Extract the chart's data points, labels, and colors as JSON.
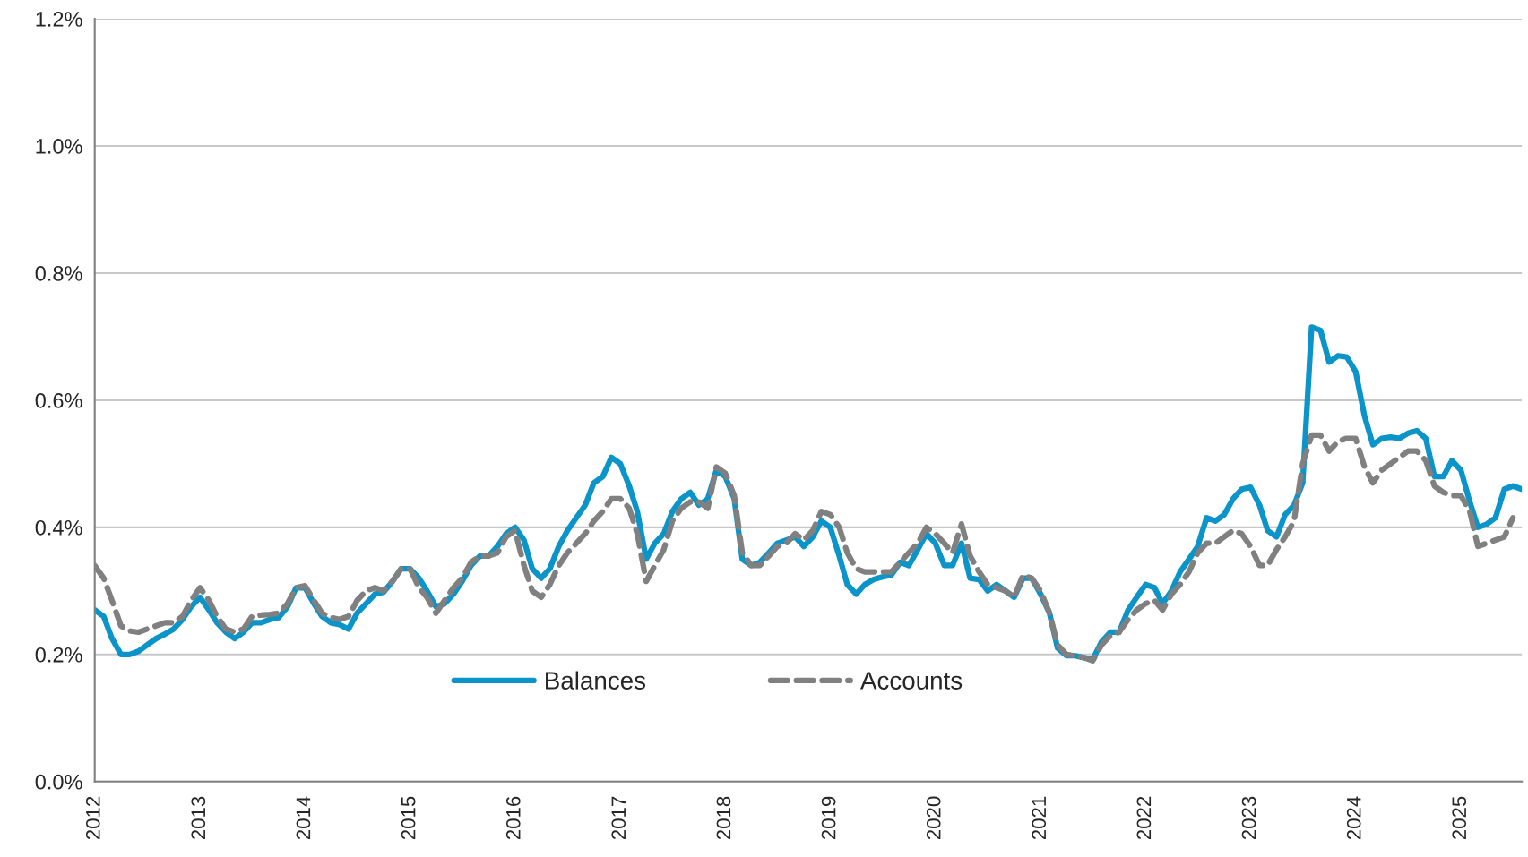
{
  "chart_data": {
    "type": "line",
    "x": [
      "2012-01",
      "2012-02",
      "2012-03",
      "2012-04",
      "2012-05",
      "2012-06",
      "2012-07",
      "2012-08",
      "2012-09",
      "2012-10",
      "2012-11",
      "2012-12",
      "2013-01",
      "2013-02",
      "2013-03",
      "2013-04",
      "2013-05",
      "2013-06",
      "2013-07",
      "2013-08",
      "2013-09",
      "2013-10",
      "2013-11",
      "2013-12",
      "2014-01",
      "2014-02",
      "2014-03",
      "2014-04",
      "2014-05",
      "2014-06",
      "2014-07",
      "2014-08",
      "2014-09",
      "2014-10",
      "2014-11",
      "2014-12",
      "2015-01",
      "2015-02",
      "2015-03",
      "2015-04",
      "2015-05",
      "2015-06",
      "2015-07",
      "2015-08",
      "2015-09",
      "2015-10",
      "2015-11",
      "2015-12",
      "2016-01",
      "2016-02",
      "2016-03",
      "2016-04",
      "2016-05",
      "2016-06",
      "2016-07",
      "2016-08",
      "2016-09",
      "2016-10",
      "2016-11",
      "2016-12",
      "2017-01",
      "2017-02",
      "2017-03",
      "2017-04",
      "2017-05",
      "2017-06",
      "2017-07",
      "2017-08",
      "2017-09",
      "2017-10",
      "2017-11",
      "2017-12",
      "2018-01",
      "2018-02",
      "2018-03",
      "2018-04",
      "2018-05",
      "2018-06",
      "2018-07",
      "2018-08",
      "2018-09",
      "2018-10",
      "2018-11",
      "2018-12",
      "2019-01",
      "2019-02",
      "2019-03",
      "2019-04",
      "2019-05",
      "2019-06",
      "2019-07",
      "2019-08",
      "2019-09",
      "2019-10",
      "2019-11",
      "2019-12",
      "2020-01",
      "2020-02",
      "2020-03",
      "2020-04",
      "2020-05",
      "2020-06",
      "2020-07",
      "2020-08",
      "2020-09",
      "2020-10",
      "2020-11",
      "2020-12",
      "2021-01",
      "2021-02",
      "2021-03",
      "2021-04",
      "2021-05",
      "2021-06",
      "2021-07",
      "2021-08",
      "2021-09",
      "2021-10",
      "2021-11",
      "2021-12",
      "2022-01",
      "2022-02",
      "2022-03",
      "2022-04",
      "2022-05",
      "2022-06",
      "2022-07",
      "2022-08",
      "2022-09",
      "2022-10",
      "2022-11",
      "2022-12",
      "2023-01",
      "2023-02",
      "2023-03",
      "2023-04",
      "2023-05",
      "2023-06",
      "2023-07",
      "2023-08",
      "2023-09",
      "2023-10",
      "2023-11",
      "2023-12",
      "2024-01",
      "2024-02",
      "2024-03",
      "2024-04",
      "2024-05",
      "2024-06",
      "2024-07",
      "2024-08",
      "2024-09",
      "2024-10",
      "2024-11",
      "2024-12",
      "2025-01",
      "2025-02",
      "2025-03",
      "2025-04",
      "2025-05",
      "2025-06",
      "2025-07",
      "2025-08"
    ],
    "series": [
      {
        "name": "Balances",
        "color": "#0a94c9",
        "line_style": "solid",
        "values": [
          0.27,
          0.26,
          0.225,
          0.2,
          0.2,
          0.205,
          0.215,
          0.225,
          0.232,
          0.24,
          0.255,
          0.275,
          0.29,
          0.27,
          0.25,
          0.235,
          0.225,
          0.235,
          0.25,
          0.25,
          0.255,
          0.258,
          0.275,
          0.305,
          0.305,
          0.28,
          0.26,
          0.25,
          0.247,
          0.24,
          0.265,
          0.28,
          0.295,
          0.298,
          0.315,
          0.335,
          0.335,
          0.32,
          0.3,
          0.275,
          0.28,
          0.295,
          0.315,
          0.34,
          0.355,
          0.355,
          0.37,
          0.39,
          0.4,
          0.38,
          0.335,
          0.32,
          0.335,
          0.37,
          0.395,
          0.415,
          0.435,
          0.47,
          0.48,
          0.51,
          0.5,
          0.465,
          0.425,
          0.35,
          0.375,
          0.39,
          0.425,
          0.445,
          0.455,
          0.435,
          0.445,
          0.49,
          0.48,
          0.445,
          0.35,
          0.34,
          0.345,
          0.36,
          0.375,
          0.38,
          0.385,
          0.37,
          0.385,
          0.41,
          0.4,
          0.355,
          0.31,
          0.295,
          0.31,
          0.318,
          0.322,
          0.325,
          0.345,
          0.34,
          0.365,
          0.39,
          0.375,
          0.34,
          0.34,
          0.375,
          0.32,
          0.318,
          0.3,
          0.31,
          0.3,
          0.29,
          0.32,
          0.32,
          0.295,
          0.265,
          0.21,
          0.198,
          0.198,
          0.195,
          0.192,
          0.22,
          0.235,
          0.235,
          0.27,
          0.29,
          0.31,
          0.305,
          0.28,
          0.3,
          0.33,
          0.35,
          0.37,
          0.415,
          0.41,
          0.42,
          0.445,
          0.46,
          0.463,
          0.435,
          0.395,
          0.385,
          0.42,
          0.435,
          0.47,
          0.715,
          0.71,
          0.66,
          0.67,
          0.668,
          0.645,
          0.575,
          0.53,
          0.54,
          0.542,
          0.54,
          0.548,
          0.552,
          0.54,
          0.48,
          0.48,
          0.505,
          0.49,
          0.44,
          0.4,
          0.405,
          0.415,
          0.46,
          0.465,
          0.46
        ]
      },
      {
        "name": "Accounts",
        "color": "#808080",
        "line_style": "dashed",
        "values": [
          0.34,
          0.32,
          0.285,
          0.245,
          0.237,
          0.235,
          0.24,
          0.245,
          0.25,
          0.25,
          0.26,
          0.285,
          0.305,
          0.285,
          0.26,
          0.24,
          0.235,
          0.24,
          0.26,
          0.262,
          0.263,
          0.265,
          0.28,
          0.305,
          0.308,
          0.285,
          0.265,
          0.258,
          0.255,
          0.26,
          0.285,
          0.3,
          0.305,
          0.3,
          0.315,
          0.335,
          0.335,
          0.305,
          0.29,
          0.265,
          0.285,
          0.305,
          0.32,
          0.345,
          0.355,
          0.355,
          0.36,
          0.385,
          0.395,
          0.34,
          0.3,
          0.29,
          0.31,
          0.34,
          0.36,
          0.375,
          0.39,
          0.41,
          0.425,
          0.445,
          0.445,
          0.43,
          0.39,
          0.315,
          0.34,
          0.365,
          0.41,
          0.43,
          0.44,
          0.44,
          0.43,
          0.495,
          0.485,
          0.45,
          0.36,
          0.34,
          0.34,
          0.355,
          0.37,
          0.375,
          0.39,
          0.38,
          0.395,
          0.425,
          0.42,
          0.4,
          0.36,
          0.335,
          0.33,
          0.33,
          0.33,
          0.33,
          0.345,
          0.36,
          0.375,
          0.4,
          0.39,
          0.375,
          0.36,
          0.405,
          0.355,
          0.33,
          0.31,
          0.305,
          0.3,
          0.29,
          0.325,
          0.32,
          0.3,
          0.265,
          0.215,
          0.2,
          0.198,
          0.195,
          0.19,
          0.215,
          0.23,
          0.235,
          0.255,
          0.27,
          0.28,
          0.285,
          0.27,
          0.295,
          0.31,
          0.33,
          0.36,
          0.375,
          0.375,
          0.385,
          0.395,
          0.39,
          0.37,
          0.34,
          0.34,
          0.365,
          0.385,
          0.41,
          0.5,
          0.545,
          0.545,
          0.52,
          0.535,
          0.54,
          0.54,
          0.495,
          0.47,
          0.49,
          0.5,
          0.51,
          0.52,
          0.52,
          0.505,
          0.465,
          0.455,
          0.45,
          0.45,
          0.425,
          0.37,
          0.375,
          0.38,
          0.385,
          0.415,
          null
        ]
      }
    ],
    "xlim": [
      "2012-01",
      "2025-08"
    ],
    "xticks": [
      "2012",
      "2013",
      "2014",
      "2015",
      "2016",
      "2017",
      "2018",
      "2019",
      "2020",
      "2021",
      "2022",
      "2023",
      "2024",
      "2025"
    ],
    "ylim": [
      0,
      1.2
    ],
    "yticks": [
      {
        "value": 0,
        "label": "0.0%"
      },
      {
        "value": 0.2,
        "label": "0.2%"
      },
      {
        "value": 0.4,
        "label": "0.4%"
      },
      {
        "value": 0.6,
        "label": "0.6%"
      },
      {
        "value": 0.8,
        "label": "0.8%"
      },
      {
        "value": 1.0,
        "label": "1.0%"
      },
      {
        "value": 1.2,
        "label": "1.2%"
      }
    ],
    "grid": "y",
    "legend": "bottom",
    "marker": "none"
  }
}
